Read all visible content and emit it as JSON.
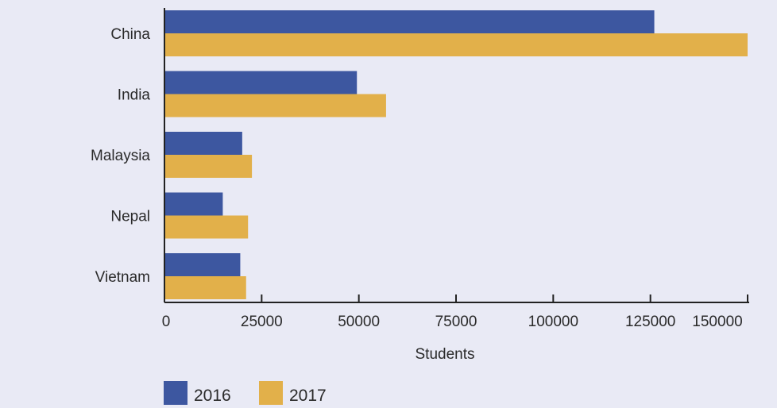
{
  "chart_data": {
    "type": "bar",
    "orientation": "horizontal",
    "categories": [
      "China",
      "India",
      "Malaysia",
      "Nepal",
      "Vietnam"
    ],
    "series": [
      {
        "name": "2016",
        "values": [
          126000,
          49500,
          20000,
          15000,
          19500
        ],
        "color": "#3d57a0"
      },
      {
        "name": "2017",
        "values": [
          150000,
          57000,
          22500,
          21500,
          21000
        ],
        "color": "#e2b04a"
      }
    ],
    "xlabel": "Students",
    "xlim": [
      0,
      150000
    ],
    "xticks": [
      "0",
      "25000",
      "50000",
      "75000",
      "100000",
      "125000",
      "150000"
    ],
    "xtick_values": [
      0,
      25000,
      50000,
      75000,
      100000,
      125000,
      150000
    ],
    "grid": false,
    "legend_position": "bottom-left"
  }
}
